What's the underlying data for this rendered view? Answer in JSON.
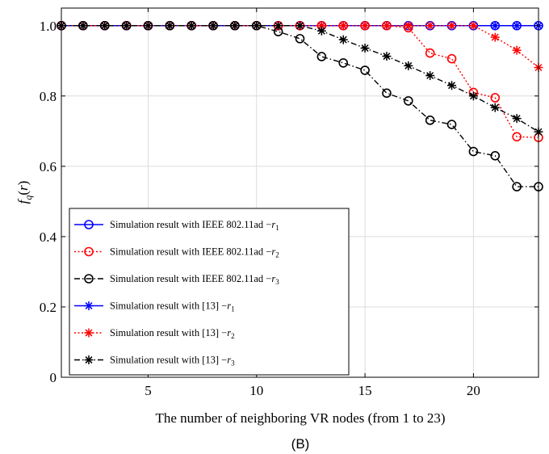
{
  "chart_data": {
    "type": "line",
    "caption": "(B)",
    "xlabel": "The number of neighboring VR nodes (from 1 to 23)",
    "ylabel": {
      "base": "f",
      "sub": "q",
      "rest": "(r)"
    },
    "xlim": [
      1,
      23
    ],
    "ylim": [
      0,
      1.05
    ],
    "xticks": [
      5,
      10,
      15,
      20
    ],
    "yticks": [
      0,
      0.2,
      0.4,
      0.6,
      0.8,
      1.0
    ],
    "ytick_labels": [
      "0",
      "0.2",
      "0.4",
      "0.6",
      "0.8",
      "1.0"
    ],
    "grid": true,
    "legend_position": "bottom-left",
    "x": [
      1,
      2,
      3,
      4,
      5,
      6,
      7,
      8,
      9,
      10,
      11,
      12,
      13,
      14,
      15,
      16,
      17,
      18,
      19,
      20,
      21,
      22,
      23
    ],
    "series": [
      {
        "name": "Simulation result with IEEE 802.11ad −r",
        "sub": "1",
        "color": "#0000ff",
        "marker": "circle",
        "dash": "solid",
        "values": [
          1,
          1,
          1,
          1,
          1,
          1,
          1,
          1,
          1,
          1,
          1,
          1,
          1,
          1,
          1,
          1,
          1,
          1,
          1,
          1,
          1,
          1,
          1
        ]
      },
      {
        "name": "Simulation result with IEEE 802.11ad −r",
        "sub": "2",
        "color": "#ff0000",
        "marker": "circle",
        "dash": "dotted",
        "values": [
          1,
          1,
          1,
          1,
          1,
          1,
          1,
          1,
          1,
          1,
          1,
          1,
          1,
          1,
          1,
          1,
          0.994,
          0.922,
          0.906,
          0.81,
          0.795,
          0.684,
          0.682
        ]
      },
      {
        "name": "Simulation result with IEEE 802.11ad −r",
        "sub": "3",
        "color": "#000000",
        "marker": "circle",
        "dash": "dashdot",
        "values": [
          1,
          1,
          1,
          1,
          1,
          1,
          1,
          1,
          1,
          1,
          0.983,
          0.963,
          0.912,
          0.894,
          0.873,
          0.808,
          0.786,
          0.731,
          0.719,
          0.642,
          0.63,
          0.542,
          0.542
        ]
      },
      {
        "name": "Simulation result with [13] −r",
        "sub": "1",
        "color": "#0000ff",
        "marker": "star",
        "dash": "solid",
        "values": [
          1,
          1,
          1,
          1,
          1,
          1,
          1,
          1,
          1,
          1,
          1,
          1,
          1,
          1,
          1,
          1,
          1,
          1,
          1,
          1,
          1,
          1,
          1
        ]
      },
      {
        "name": "Simulation result with [13] −r",
        "sub": "2",
        "color": "#ff0000",
        "marker": "star",
        "dash": "dotted",
        "values": [
          1,
          1,
          1,
          1,
          1,
          1,
          1,
          1,
          1,
          1,
          1,
          1,
          1,
          1,
          1,
          1,
          1,
          1,
          1,
          1,
          0.967,
          0.93,
          0.881
        ]
      },
      {
        "name": "Simulation result with [13] −r",
        "sub": "3",
        "color": "#000000",
        "marker": "star",
        "dash": "dashdot",
        "values": [
          1,
          1,
          1,
          1,
          1,
          1,
          1,
          1,
          1,
          1,
          1,
          1,
          0.985,
          0.96,
          0.936,
          0.913,
          0.886,
          0.858,
          0.83,
          0.8,
          0.767,
          0.736,
          0.698
        ]
      }
    ]
  }
}
